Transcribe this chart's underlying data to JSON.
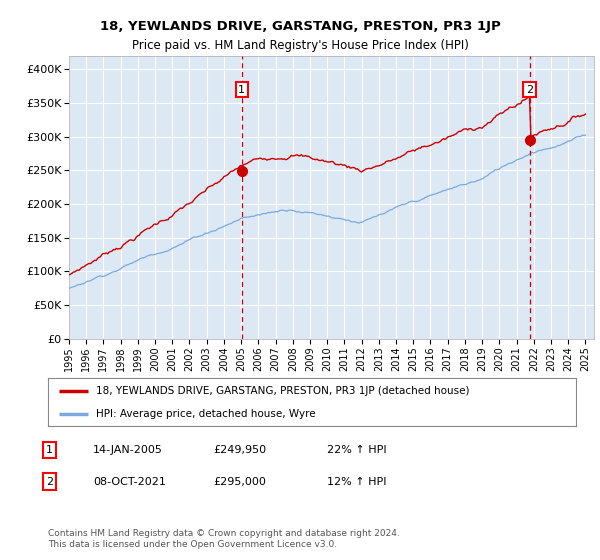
{
  "title": "18, YEWLANDS DRIVE, GARSTANG, PRESTON, PR3 1JP",
  "subtitle": "Price paid vs. HM Land Registry's House Price Index (HPI)",
  "ylabel_ticks": [
    "£0",
    "£50K",
    "£100K",
    "£150K",
    "£200K",
    "£250K",
    "£300K",
    "£350K",
    "£400K"
  ],
  "ytick_values": [
    0,
    50000,
    100000,
    150000,
    200000,
    250000,
    300000,
    350000,
    400000
  ],
  "ylim": [
    0,
    420000
  ],
  "xlim_start": 1995.0,
  "xlim_end": 2025.5,
  "background_color": "#dde8f5",
  "grid_color": "#ffffff",
  "red_line_color": "#cc0000",
  "blue_line_color": "#7aaadd",
  "marker1_x": 2005.04,
  "marker1_y": 249950,
  "marker2_x": 2021.77,
  "marker2_y": 295000,
  "annotation1_label": "1",
  "annotation2_label": "2",
  "legend_line1": "18, YEWLANDS DRIVE, GARSTANG, PRESTON, PR3 1JP (detached house)",
  "legend_line2": "HPI: Average price, detached house, Wyre",
  "table_rows": [
    [
      "1",
      "14-JAN-2005",
      "£249,950",
      "22% ↑ HPI"
    ],
    [
      "2",
      "08-OCT-2021",
      "£295,000",
      "12% ↑ HPI"
    ]
  ],
  "footer_text": "Contains HM Land Registry data © Crown copyright and database right 2024.\nThis data is licensed under the Open Government Licence v3.0.",
  "xtick_years": [
    1995,
    1996,
    1997,
    1998,
    1999,
    2000,
    2001,
    2002,
    2003,
    2004,
    2005,
    2006,
    2007,
    2008,
    2009,
    2010,
    2011,
    2012,
    2013,
    2014,
    2015,
    2016,
    2017,
    2018,
    2019,
    2020,
    2021,
    2022,
    2023,
    2024,
    2025
  ]
}
